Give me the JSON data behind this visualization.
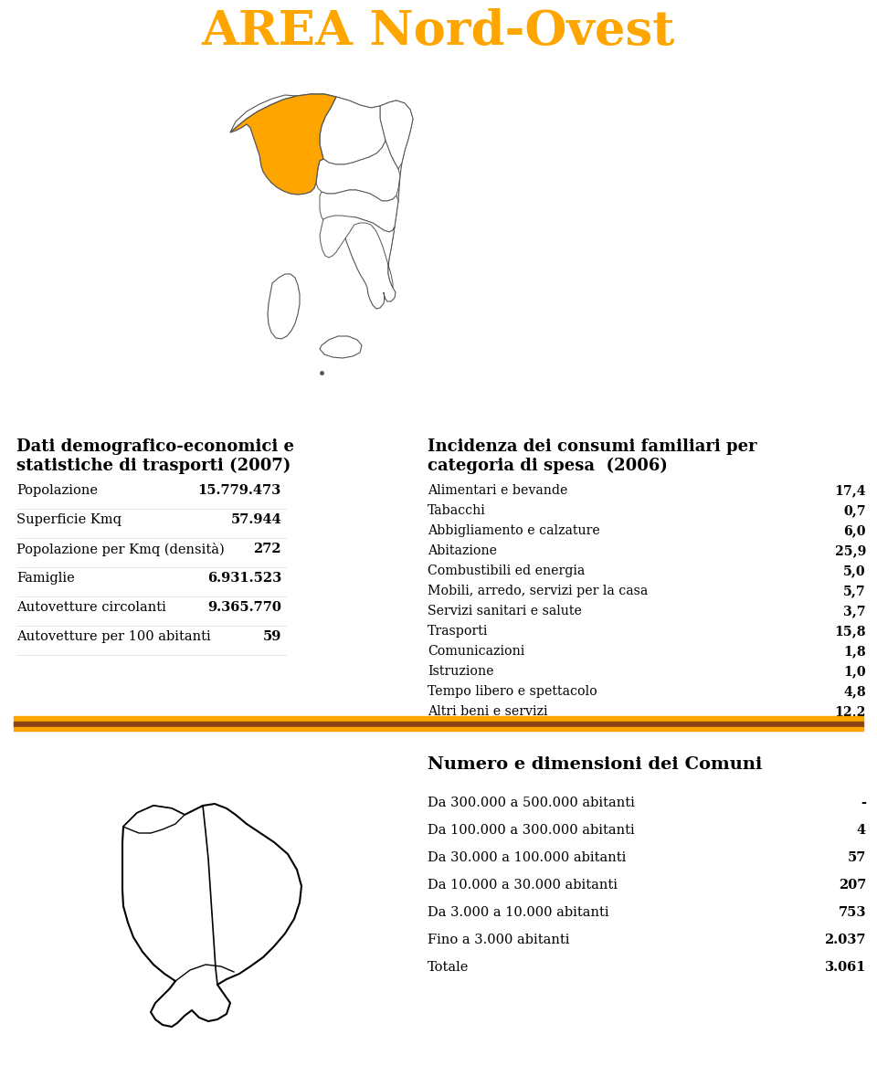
{
  "title": "AREA Nord-Ovest",
  "title_color": "#FFA500",
  "bg_color": "#FFFFFF",
  "left_section_title_line1": "Dati demografico-economici e",
  "left_section_title_line2": "statistiche di trasporti (2007)",
  "left_rows": [
    [
      "Popolazione",
      "15.779.473"
    ],
    [
      "Superficie Kmq",
      "57.944"
    ],
    [
      "Popolazione per Kmq (densità)",
      "272"
    ],
    [
      "Famiglie",
      "6.931.523"
    ],
    [
      "Autovetture circolanti",
      "9.365.770"
    ],
    [
      "Autovetture per 100 abitanti",
      "59"
    ]
  ],
  "right_section_title_line1": "Incidenza dei consumi familiari per",
  "right_section_title_line2": "categoria di spesa  (2006)",
  "right_rows": [
    [
      "Alimentari e bevande",
      "17,4"
    ],
    [
      "Tabacchi",
      "0,7"
    ],
    [
      "Abbigliamento e calzature",
      "6,0"
    ],
    [
      "Abitazione",
      "25,9"
    ],
    [
      "Combustibili ed energia",
      "5,0"
    ],
    [
      "Mobili, arredo, servizi per la casa",
      "5,7"
    ],
    [
      "Servizi sanitari e salute",
      "3,7"
    ],
    [
      "Trasporti",
      "15,8"
    ],
    [
      "Comunicazioni",
      "1,8"
    ],
    [
      "Istruzione",
      "1,0"
    ],
    [
      "Tempo libero e spettacolo",
      "4,8"
    ],
    [
      "Altri beni e servizi",
      "12,2"
    ]
  ],
  "comuni_title": "Numero e dimensioni dei Comuni",
  "comuni_rows": [
    [
      "Da 300.000 a 500.000 abitanti",
      "-"
    ],
    [
      "Da 100.000 a 300.000 abitanti",
      "4"
    ],
    [
      "Da 30.000 a 100.000 abitanti",
      "57"
    ],
    [
      "Da 10.000 a 30.000 abitanti",
      "207"
    ],
    [
      "Da 3.000 a 10.000 abitanti",
      "753"
    ],
    [
      "Fino a 3.000 abitanti",
      "2.037"
    ],
    [
      "Totale",
      "3.061"
    ]
  ],
  "stripe1_color": "#FFA500",
  "stripe2_color": "#8B4513",
  "stripe3_color": "#FFA500"
}
